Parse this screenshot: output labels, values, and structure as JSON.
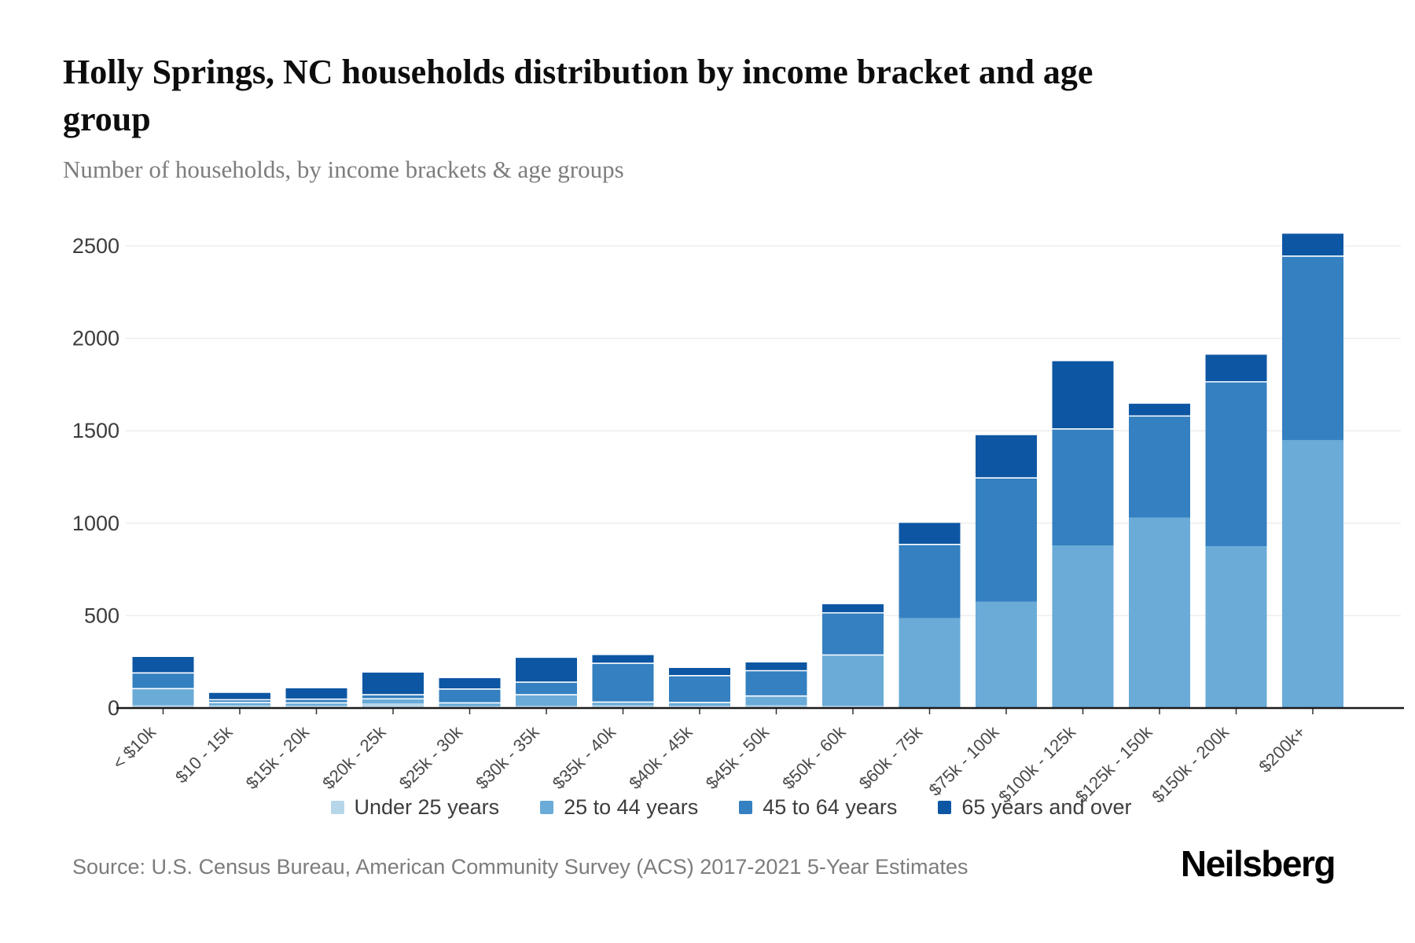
{
  "header": {
    "title": "Holly Springs, NC households distribution by income bracket and age group",
    "subtitle": "Number of households, by income brackets & age groups"
  },
  "chart_data": {
    "type": "bar",
    "stacked": true,
    "title": "Holly Springs, NC households distribution by income bracket and age group",
    "subtitle": "Number of households, by income brackets & age groups",
    "xlabel": "",
    "ylabel": "",
    "ylim": [
      0,
      2600
    ],
    "yticks": [
      0,
      500,
      1000,
      1500,
      2000,
      2500
    ],
    "grid": true,
    "legend_position": "bottom",
    "categories": [
      "< $10k",
      "$10 - 15k",
      "$15k - 20k",
      "$20k - 25k",
      "$25k - 30k",
      "$30k - 35k",
      "$35k - 40k",
      "$40k - 45k",
      "$45k - 50k",
      "$50k - 60k",
      "$60k - 75k",
      "$75k - 100k",
      "$100k - 125k",
      "$125k - 150k",
      "$150k - 200k",
      "$200k+"
    ],
    "series": [
      {
        "name": "Under 25 years",
        "color": "#b7d6ea",
        "values": [
          15,
          15,
          13,
          25,
          10,
          12,
          15,
          12,
          15,
          12,
          0,
          0,
          0,
          0,
          0,
          0
        ]
      },
      {
        "name": "25 to 44 years",
        "color": "#6aabd8",
        "values": [
          90,
          15,
          15,
          25,
          18,
          60,
          17,
          18,
          50,
          275,
          487,
          575,
          880,
          1030,
          875,
          1450
        ]
      },
      {
        "name": "45 to 64 years",
        "color": "#3480c0",
        "values": [
          85,
          15,
          20,
          22,
          75,
          68,
          210,
          145,
          137,
          228,
          398,
          670,
          630,
          550,
          890,
          995
        ]
      },
      {
        "name": "65 years and over",
        "color": "#0d56a3",
        "values": [
          90,
          40,
          62,
          123,
          62,
          135,
          48,
          45,
          48,
          50,
          120,
          235,
          370,
          70,
          150,
          125
        ]
      }
    ],
    "axis_text_color": "#3c3c3c",
    "xlabel_text_color": "#4a4a4a",
    "gridline_color": "#ededed",
    "axis_line_color": "#1a1a1a"
  },
  "footer": {
    "source": "Source: U.S. Census Bureau, American Community Survey (ACS) 2017-2021 5-Year Estimates",
    "brand": "Neilsberg"
  }
}
